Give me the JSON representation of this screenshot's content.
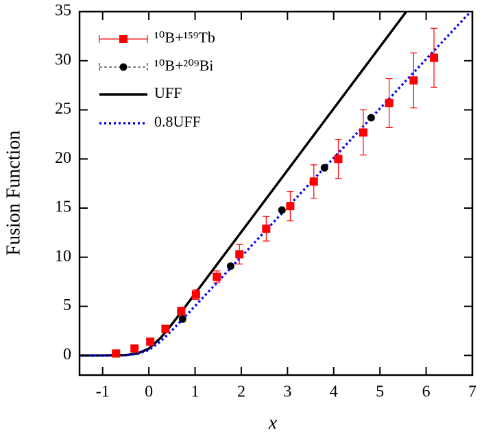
{
  "chart_data": {
    "type": "line",
    "xlabel": "x",
    "ylabel": "Fusion Function",
    "xlim": [
      -1.5,
      7
    ],
    "ylim": [
      -2,
      35
    ],
    "xticks": [
      -1,
      0,
      1,
      2,
      3,
      4,
      5,
      6,
      7
    ],
    "yticks": [
      0,
      5,
      10,
      15,
      20,
      25,
      30,
      35
    ],
    "legend": "upper left",
    "series": [
      {
        "name": "¹⁰B+¹⁵⁹Tb",
        "style": "errorbar",
        "color": "#ff0000",
        "x": [
          -0.71,
          -0.31,
          0.03,
          0.36,
          0.7,
          1.02,
          1.47,
          1.96,
          2.54,
          3.06,
          3.57,
          4.1,
          4.64,
          5.2,
          5.73,
          6.17
        ],
        "values": [
          0.2,
          0.7,
          1.4,
          2.7,
          4.5,
          6.2,
          8.0,
          10.3,
          12.9,
          15.2,
          17.7,
          20.0,
          22.7,
          25.7,
          28.0,
          30.3
        ],
        "errors": [
          0.1,
          0.1,
          0.2,
          0.3,
          0.4,
          0.5,
          0.6,
          1.0,
          1.25,
          1.5,
          1.7,
          2.0,
          2.3,
          2.5,
          2.8,
          3.0
        ]
      },
      {
        "name": "¹⁰B+²⁰⁹Bi",
        "style": "points",
        "color": "#000000",
        "x": [
          0.73,
          1.77,
          2.88,
          3.8,
          4.81
        ],
        "values": [
          3.7,
          9.1,
          14.8,
          19.1,
          24.2
        ]
      },
      {
        "name": "UFF",
        "style": "solid",
        "color": "#000000",
        "x": [
          -1.5,
          -1,
          -0.5,
          -0.25,
          0,
          0.25,
          0.5,
          0.75,
          1,
          1.5,
          5.6
        ],
        "values": [
          0,
          0.002,
          0.042,
          0.189,
          0.693,
          1.759,
          3.184,
          4.721,
          6.285,
          9.425,
          35.186
        ]
      },
      {
        "name": "0.8UFF",
        "style": "dotted",
        "color": "#0000ff",
        "x": [
          -1.5,
          -1,
          -0.5,
          -0.25,
          0,
          0.25,
          0.5,
          0.75,
          1,
          1.5,
          7
        ],
        "values": [
          0,
          0.001,
          0.034,
          0.151,
          0.555,
          1.407,
          2.547,
          3.777,
          5.028,
          7.54,
          35.186
        ]
      }
    ]
  }
}
